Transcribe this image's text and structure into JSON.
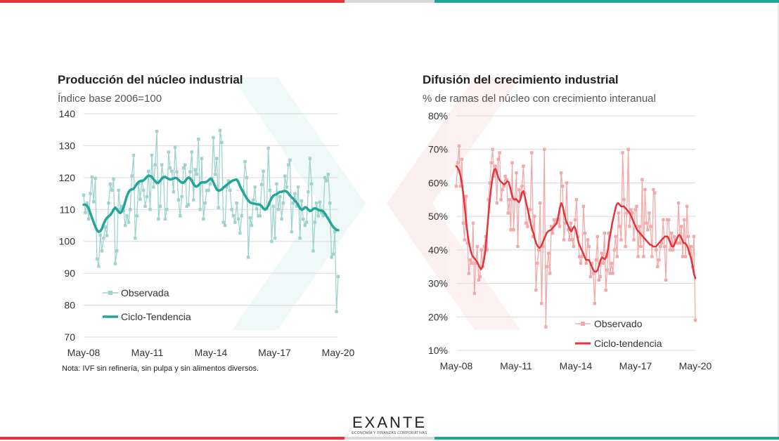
{
  "colors": {
    "red": "#e2343a",
    "teal": "#22a699",
    "teal_light": "#9fd3cc",
    "red_light": "#f2a9aa",
    "grid": "#d9d9d9"
  },
  "logo": {
    "name": "EXANTE",
    "tagline": "ECONOMÍA Y FINANZAS CORPORATIVAS"
  },
  "chart_data": [
    {
      "type": "line",
      "title": "Producción del núcleo industrial",
      "subtitle": "Índice base 2006=100",
      "note": "Nota: IVF sin refinería, sin pulpa y sin alimentos diversos.",
      "ylim": [
        70,
        140
      ],
      "yticks": [
        "70",
        "80",
        "90",
        "100",
        "110",
        "120",
        "130",
        "140"
      ],
      "xticks": [
        "May-08",
        "May-11",
        "May-14",
        "May-17",
        "May-20"
      ],
      "x_start": "2008-05",
      "x_end": "2020-05",
      "grid": true,
      "legend_position": "bottom-left",
      "series": [
        {
          "name": "Observada",
          "style": "markers",
          "values": [
            114.5,
            109,
            112,
            107,
            115,
            120.2,
            112.4,
            119.8,
            94.5,
            92.2,
            102,
            97,
            101,
            104.5,
            101.8,
            112,
            118,
            116,
            119.5,
            93,
            97,
            116,
            110,
            111,
            109.6,
            105,
            108,
            106,
            110,
            120.5,
            127,
            101,
            108,
            118,
            113.2,
            119,
            116,
            111,
            114,
            122,
            110,
            127,
            117,
            124,
            134.5,
            107,
            111,
            124,
            120.2,
            107,
            110,
            128,
            123,
            122,
            115.5,
            129.5,
            121.8,
            113,
            108,
            114,
            123,
            124,
            111,
            111.5,
            121.8,
            128,
            113,
            122.5,
            121,
            132,
            110,
            126,
            107,
            112,
            116,
            116,
            118,
            119.8,
            132.5,
            121,
            126,
            110.6,
            134.8,
            131,
            106,
            105,
            117,
            119,
            116,
            110,
            108,
            106,
            112,
            107,
            102.6,
            108,
            116,
            125,
            120,
            95,
            107.4,
            105,
            113,
            117,
            110.2,
            108,
            108,
            117.8,
            122,
            110,
            110.2,
            129.2,
            116,
            100,
            111,
            101,
            118,
            110,
            114,
            107,
            112,
            120.5,
            117,
            124,
            125.5,
            103,
            112,
            115,
            111,
            117,
            101,
            112.7,
            107,
            105,
            106,
            115.5,
            126,
            118,
            97,
            106,
            112,
            108,
            112.3,
            109,
            108,
            120,
            119,
            121,
            112,
            95,
            96,
            103,
            78,
            89
          ]
        },
        {
          "name": "Ciclo-Tendencia",
          "style": "line",
          "values": [
            111.5,
            111.5,
            111.2,
            110.4,
            108.8,
            107.4,
            106,
            104.6,
            103.5,
            103,
            103.2,
            104,
            105.5,
            106.6,
            107.4,
            107.8,
            108.3,
            109,
            110,
            110.6,
            110,
            109.3,
            108.9,
            109.4,
            110.7,
            112.5,
            114.2,
            115.4,
            116.1,
            116.3,
            116.5,
            117.2,
            118,
            118.6,
            118.9,
            118.9,
            119.1,
            119.6,
            120.2,
            120.6,
            120.5,
            120.2,
            119.5,
            118.9,
            118.3,
            118.4,
            119,
            119.7,
            120.1,
            120.2,
            119.9,
            119.6,
            119.4,
            119.5,
            119.7,
            119.9,
            119.8,
            119.3,
            118.8,
            118.4,
            118.4,
            118.9,
            119.6,
            120,
            119.8,
            119,
            118,
            117.3,
            117.2,
            117.6,
            118.2,
            118.5,
            118.5,
            118.5,
            118.7,
            119.1,
            119.6,
            119.5,
            118.5,
            117.3,
            116.3,
            115.9,
            116,
            116.3,
            116.8,
            117.3,
            117.7,
            118.1,
            118.5,
            118.9,
            119.1,
            119.3,
            119.4,
            118.6,
            117.3,
            116.2,
            115.3,
            114.4,
            113.5,
            112.8,
            112.2,
            112,
            111.9,
            111.8,
            111.6,
            111.6,
            111.5,
            111,
            110.3,
            110,
            110.3,
            111.2,
            112.5,
            113.6,
            114.3,
            114.6,
            114.8,
            115.2,
            115.5,
            115.5,
            115.7,
            115.8,
            115.6,
            115.1,
            114.4,
            113.8,
            113.4,
            112.7,
            112.2,
            111.4,
            110.4,
            109.9,
            110.1,
            110.7,
            110.6,
            110,
            109.5,
            109.7,
            110.2,
            110.4,
            110.2,
            109.9,
            109.7,
            109.7,
            109.4,
            108.7,
            107.9,
            107.1,
            106.2,
            105.3,
            104.5,
            104,
            103.6,
            103.5
          ]
        }
      ]
    },
    {
      "type": "line",
      "title": "Difusión del crecimiento industrial",
      "subtitle": "% de ramas del núcleo con crecimiento interanual",
      "ylim": [
        10,
        80
      ],
      "yticks": [
        "10%",
        "20%",
        "30%",
        "40%",
        "50%",
        "60%",
        "70%",
        "80%"
      ],
      "xticks": [
        "May-08",
        "May-11",
        "May-14",
        "May-17",
        "May-20"
      ],
      "x_start": "2008-05",
      "x_end": "2020-05",
      "grid": true,
      "legend_position": "bottom-right",
      "series": [
        {
          "name": "Observado",
          "style": "markers",
          "values": [
            59,
            66,
            71,
            59,
            67,
            48,
            43,
            56,
            42,
            33,
            37,
            36,
            48,
            27,
            36,
            41,
            31,
            32,
            40,
            35,
            41,
            44,
            40,
            55,
            60,
            66,
            70,
            62,
            65,
            54,
            67,
            69,
            55,
            58,
            59,
            62,
            61,
            51,
            55,
            46,
            66,
            46,
            55,
            63,
            41,
            58,
            56,
            59,
            65,
            57,
            48,
            47,
            52,
            52,
            69,
            44,
            50,
            28,
            36,
            40,
            54,
            24,
            41,
            70,
            17,
            35,
            39,
            33,
            47,
            45,
            49,
            48,
            49,
            49,
            47,
            63,
            59,
            43,
            48,
            60,
            46,
            43,
            48,
            43,
            41,
            49,
            55,
            44,
            38,
            36,
            38,
            53,
            45,
            36,
            43,
            41,
            32,
            36,
            33,
            24,
            37,
            44,
            31,
            32,
            39,
            36,
            45,
            28,
            34,
            45,
            33,
            36,
            33,
            40,
            44,
            38,
            51,
            47,
            43,
            69,
            55,
            41,
            51,
            70,
            47,
            52,
            51,
            43,
            52,
            53,
            38,
            47,
            41,
            61,
            38,
            58,
            48,
            46,
            51,
            47,
            38,
            58,
            57,
            40,
            35,
            37,
            41,
            42,
            49,
            41,
            31,
            49,
            49,
            40,
            45,
            40,
            44,
            43,
            42,
            54,
            42,
            47,
            38,
            49,
            38,
            53,
            44,
            39,
            41,
            35,
            44,
            19
          ]
        },
        {
          "name": "Ciclo-tendencia",
          "style": "line",
          "values": [
            65,
            64.5,
            63.5,
            62,
            59.5,
            56,
            52,
            47.5,
            44,
            41.5,
            39.5,
            38.3,
            37.7,
            37.2,
            36.6,
            35.8,
            34.8,
            34.2,
            35,
            37,
            40,
            45,
            50,
            55,
            59,
            62,
            64,
            64.2,
            62.8,
            61.5,
            60.6,
            60.2,
            59.8,
            59.5,
            60,
            60.5,
            60.2,
            58.6,
            56.6,
            55.3,
            55,
            55.2,
            54.7,
            54.2,
            55,
            57,
            57.6,
            56,
            54,
            52,
            50,
            48,
            46,
            45,
            43,
            41.8,
            41,
            40.6,
            41,
            41.8,
            43,
            44,
            45,
            45.5,
            45.8,
            46,
            46.5,
            47,
            47.5,
            48,
            50,
            52.5,
            54,
            53,
            51,
            49,
            48,
            47,
            46,
            45.5,
            46.5,
            47,
            46,
            44,
            42,
            41,
            40,
            39,
            38,
            37,
            37,
            37,
            36,
            35,
            34,
            33.5,
            33.5,
            34,
            35.5,
            37,
            37.8,
            37.5,
            37.2,
            38,
            40,
            43,
            45.5,
            48,
            50,
            52,
            53.5,
            54,
            53.5,
            53,
            53,
            53,
            52.5,
            52,
            51.5,
            51,
            50,
            49,
            48,
            47,
            46,
            45.5,
            45,
            44.5,
            44,
            43.5,
            43,
            42.5,
            42,
            41.5,
            41.5,
            41,
            41,
            41,
            41.5,
            42,
            42.5,
            43,
            43.5,
            44,
            44,
            44,
            43,
            42,
            41,
            41,
            42,
            43,
            44,
            44.5,
            44,
            43,
            42,
            42,
            41.5,
            40.5,
            39,
            37.5,
            35.5,
            33,
            31.5
          ]
        }
      ]
    }
  ]
}
